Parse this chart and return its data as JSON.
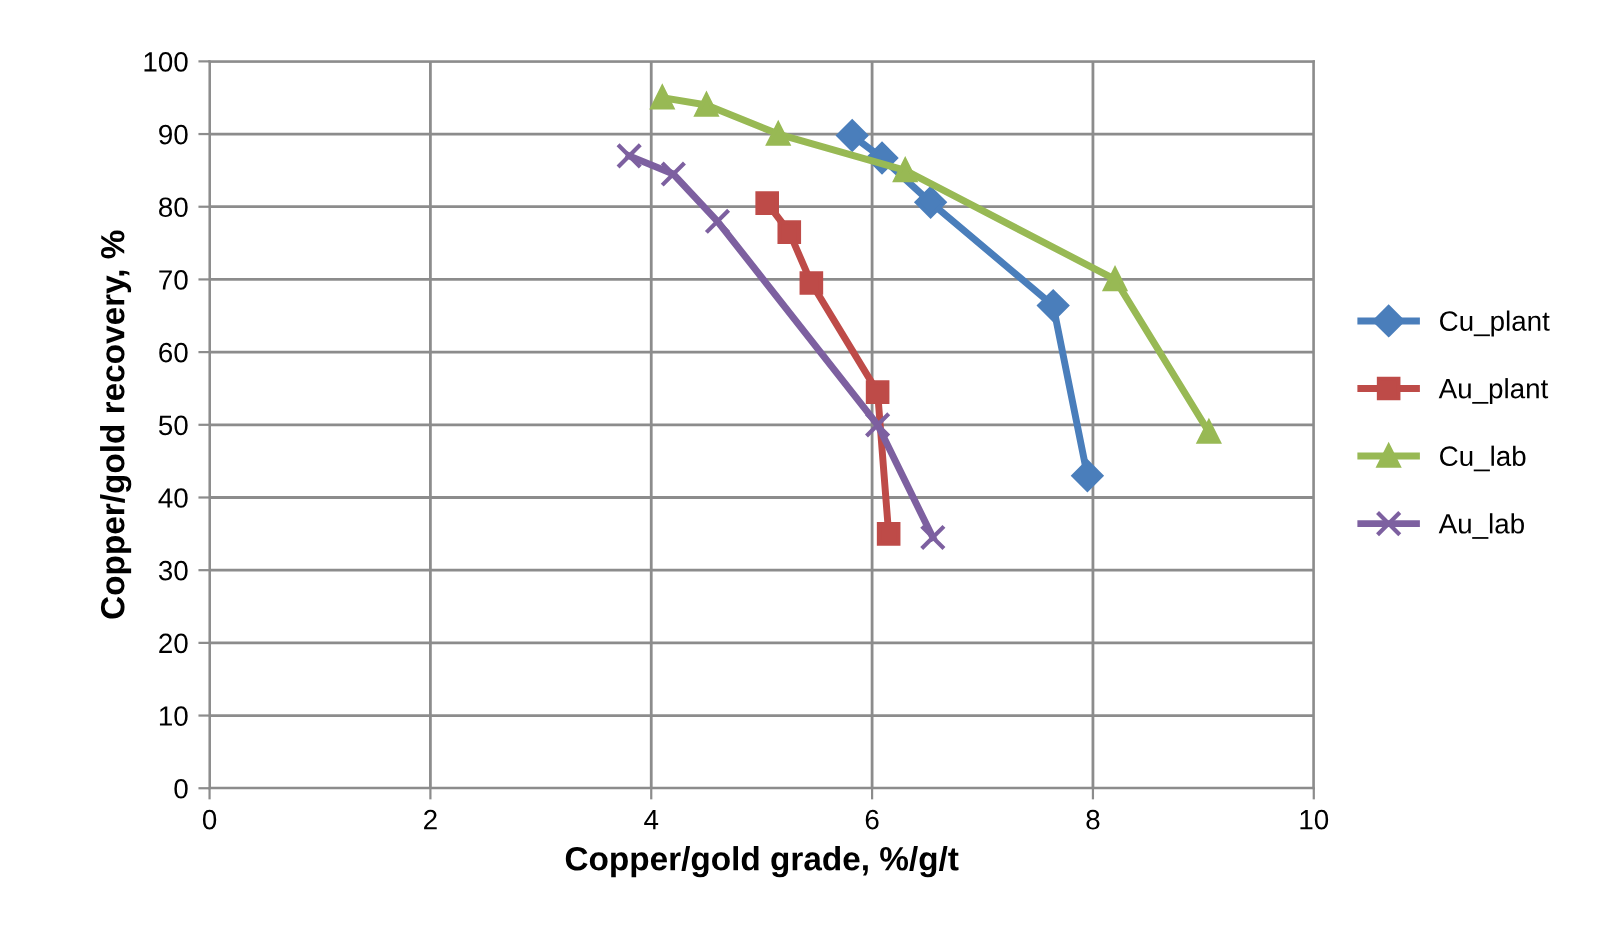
{
  "chart_data": {
    "type": "line",
    "xlabel": "Copper/gold grade, %/g/t",
    "ylabel": "Copper/gold recovery, %",
    "xlim": [
      0,
      10
    ],
    "xticks": [
      0,
      2,
      4,
      6,
      8,
      10
    ],
    "ylim": [
      0,
      100
    ],
    "yticks": [
      0,
      10,
      20,
      30,
      40,
      50,
      60,
      70,
      80,
      90,
      100
    ],
    "grid": true,
    "legend": "right",
    "series": [
      {
        "name": "Cu_plant",
        "color": "#4a7ebb",
        "marker": "diamond",
        "x": [
          5.82,
          6.09,
          6.53,
          7.64,
          7.95
        ],
        "values": [
          89.8,
          86.7,
          80.6,
          66.4,
          43
        ]
      },
      {
        "name": "Au_plant",
        "color": "#be4b48",
        "marker": "square",
        "x": [
          5.05,
          5.25,
          5.45,
          6.05,
          6.15
        ],
        "values": [
          80.5,
          76.5,
          69.5,
          54.5,
          35
        ]
      },
      {
        "name": "Cu_lab",
        "color": "#98b954",
        "marker": "triangle",
        "x": [
          4.1,
          4.5,
          5.15,
          6.3,
          8.2,
          9.05
        ],
        "values": [
          95,
          94,
          90,
          85,
          70,
          49
        ]
      },
      {
        "name": "Au_lab",
        "color": "#7d60a0",
        "marker": "cross",
        "x": [
          3.8,
          4.2,
          4.6,
          6.05,
          6.55
        ],
        "values": [
          87,
          84.5,
          78,
          50,
          34.5
        ]
      }
    ]
  }
}
